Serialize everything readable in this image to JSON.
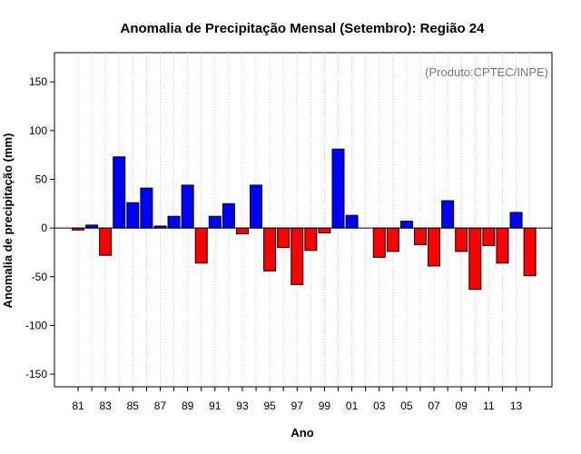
{
  "chart_data": {
    "type": "bar",
    "title": "Anomalia de Precipitação Mensal (Setembro): Região 24",
    "xlabel": "Ano",
    "ylabel": "Anomalia de precipitação (mm)",
    "annotation": "(Produto:CPTEC/INPE)",
    "ylim": [
      -163,
      180
    ],
    "yticks": [
      -150,
      -100,
      -50,
      0,
      50,
      100,
      150
    ],
    "xtick_labels": [
      "81",
      "83",
      "85",
      "87",
      "89",
      "91",
      "93",
      "95",
      "97",
      "99",
      "01",
      "03",
      "05",
      "07",
      "09",
      "11",
      "13"
    ],
    "categories": [
      "1981",
      "1982",
      "1983",
      "1984",
      "1985",
      "1986",
      "1987",
      "1988",
      "1989",
      "1990",
      "1991",
      "1992",
      "1993",
      "1994",
      "1995",
      "1996",
      "1997",
      "1998",
      "1999",
      "2000",
      "2001",
      "2002",
      "2003",
      "2004",
      "2005",
      "2006",
      "2007",
      "2008",
      "2009",
      "2010",
      "2011",
      "2012",
      "2013",
      "2014"
    ],
    "values": [
      -2,
      3,
      -28,
      73,
      26,
      41,
      2,
      12,
      44,
      -36,
      12,
      25,
      -6,
      44,
      -44,
      -20,
      -58,
      -23,
      -5,
      81,
      13,
      0,
      -30,
      -24,
      7,
      -17,
      -39,
      28,
      -24,
      -63,
      -18,
      -36,
      16,
      -49
    ],
    "positive_color": "#0000ff",
    "negative_color": "#ff0000",
    "grid": "vertical dotted",
    "zero_line": true
  }
}
